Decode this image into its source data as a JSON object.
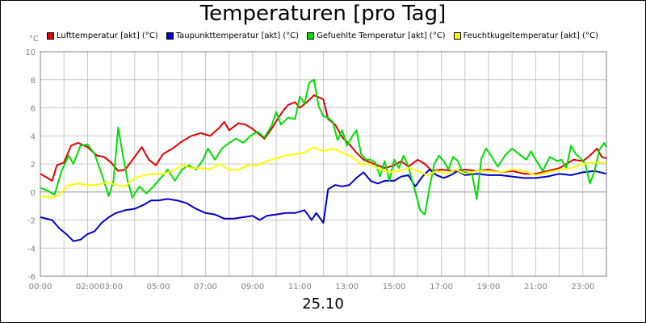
{
  "chart_data": {
    "type": "line",
    "title": "Temperaturen [pro Tag]",
    "y_unit": "°C",
    "x_title": "25.10",
    "ylim": [
      -6,
      10
    ],
    "y_ticks": [
      -6,
      -4,
      -2,
      0,
      2,
      4,
      6,
      8,
      10
    ],
    "xlim": [
      0,
      24
    ],
    "x_tick_labels": [
      {
        "h": 0,
        "label": "00:00"
      },
      {
        "h": 2,
        "label": "02:00"
      },
      {
        "h": 3,
        "label": "03:00"
      },
      {
        "h": 5,
        "label": "05:00"
      },
      {
        "h": 7,
        "label": "07:00"
      },
      {
        "h": 9,
        "label": "09:00"
      },
      {
        "h": 11,
        "label": "11:00"
      },
      {
        "h": 13,
        "label": "13:00"
      },
      {
        "h": 15,
        "label": "15:00"
      },
      {
        "h": 17,
        "label": "17:00"
      },
      {
        "h": 19,
        "label": "19:00"
      },
      {
        "h": 21,
        "label": "21:00"
      },
      {
        "h": 23,
        "label": "23:00"
      }
    ],
    "grid": true,
    "legend_position": "top",
    "series": [
      {
        "name": "Lufttemperatur [akt] (°C)",
        "color": "#e00000",
        "points": [
          [
            0,
            1.3
          ],
          [
            0.3,
            1.0
          ],
          [
            0.5,
            0.8
          ],
          [
            0.7,
            1.9
          ],
          [
            1.0,
            2.1
          ],
          [
            1.3,
            3.3
          ],
          [
            1.6,
            3.5
          ],
          [
            2.0,
            3.2
          ],
          [
            2.4,
            2.6
          ],
          [
            2.7,
            2.5
          ],
          [
            3.0,
            2.1
          ],
          [
            3.3,
            1.5
          ],
          [
            3.6,
            1.6
          ],
          [
            4.0,
            2.5
          ],
          [
            4.3,
            3.2
          ],
          [
            4.6,
            2.3
          ],
          [
            4.9,
            1.9
          ],
          [
            5.2,
            2.7
          ],
          [
            5.6,
            3.1
          ],
          [
            6.0,
            3.6
          ],
          [
            6.4,
            4.0
          ],
          [
            6.8,
            4.2
          ],
          [
            7.2,
            4.0
          ],
          [
            7.6,
            4.6
          ],
          [
            7.8,
            5.0
          ],
          [
            8.0,
            4.4
          ],
          [
            8.4,
            4.9
          ],
          [
            8.7,
            4.8
          ],
          [
            9.0,
            4.5
          ],
          [
            9.5,
            3.8
          ],
          [
            9.8,
            4.5
          ],
          [
            10.1,
            5.3
          ],
          [
            10.3,
            5.8
          ],
          [
            10.5,
            6.2
          ],
          [
            10.8,
            6.4
          ],
          [
            11.0,
            6.0
          ],
          [
            11.3,
            6.4
          ],
          [
            11.6,
            6.9
          ],
          [
            12.0,
            6.6
          ],
          [
            12.2,
            5.2
          ],
          [
            12.5,
            4.8
          ],
          [
            12.8,
            3.9
          ],
          [
            13.1,
            3.4
          ],
          [
            13.4,
            2.8
          ],
          [
            13.7,
            2.3
          ],
          [
            14.0,
            2.1
          ],
          [
            14.3,
            1.9
          ],
          [
            14.6,
            1.7
          ],
          [
            15.0,
            1.9
          ],
          [
            15.3,
            2.2
          ],
          [
            15.6,
            1.8
          ],
          [
            16.0,
            2.3
          ],
          [
            16.3,
            2.0
          ],
          [
            16.6,
            1.5
          ],
          [
            17.0,
            1.6
          ],
          [
            17.5,
            1.5
          ],
          [
            18.0,
            1.6
          ],
          [
            18.5,
            1.5
          ],
          [
            19.0,
            1.6
          ],
          [
            19.5,
            1.4
          ],
          [
            20.0,
            1.5
          ],
          [
            20.5,
            1.3
          ],
          [
            21.0,
            1.3
          ],
          [
            21.5,
            1.5
          ],
          [
            22.0,
            1.7
          ],
          [
            22.3,
            2.0
          ],
          [
            22.6,
            2.3
          ],
          [
            23.0,
            2.2
          ],
          [
            23.3,
            2.6
          ],
          [
            23.6,
            3.1
          ],
          [
            23.8,
            2.5
          ],
          [
            24.0,
            2.4
          ]
        ]
      },
      {
        "name": "Taupunkttemperatur [akt] (°C)",
        "color": "#0000cc",
        "points": [
          [
            0,
            -1.8
          ],
          [
            0.5,
            -2.0
          ],
          [
            0.8,
            -2.6
          ],
          [
            1.1,
            -3.0
          ],
          [
            1.4,
            -3.5
          ],
          [
            1.7,
            -3.4
          ],
          [
            2.0,
            -3.0
          ],
          [
            2.3,
            -2.8
          ],
          [
            2.6,
            -2.2
          ],
          [
            2.9,
            -1.8
          ],
          [
            3.2,
            -1.5
          ],
          [
            3.6,
            -1.3
          ],
          [
            4.0,
            -1.2
          ],
          [
            4.4,
            -0.9
          ],
          [
            4.7,
            -0.6
          ],
          [
            5.0,
            -0.6
          ],
          [
            5.4,
            -0.5
          ],
          [
            5.8,
            -0.6
          ],
          [
            6.2,
            -0.8
          ],
          [
            6.6,
            -1.2
          ],
          [
            7.0,
            -1.5
          ],
          [
            7.4,
            -1.6
          ],
          [
            7.8,
            -1.9
          ],
          [
            8.2,
            -1.9
          ],
          [
            8.6,
            -1.8
          ],
          [
            9.0,
            -1.7
          ],
          [
            9.3,
            -2.0
          ],
          [
            9.6,
            -1.7
          ],
          [
            10.0,
            -1.6
          ],
          [
            10.4,
            -1.5
          ],
          [
            10.8,
            -1.5
          ],
          [
            11.2,
            -1.3
          ],
          [
            11.5,
            -2.0
          ],
          [
            11.7,
            -1.5
          ],
          [
            12.0,
            -2.2
          ],
          [
            12.2,
            0.2
          ],
          [
            12.5,
            0.5
          ],
          [
            12.8,
            0.4
          ],
          [
            13.1,
            0.5
          ],
          [
            13.4,
            1.0
          ],
          [
            13.7,
            1.4
          ],
          [
            14.0,
            0.8
          ],
          [
            14.3,
            0.6
          ],
          [
            14.6,
            0.8
          ],
          [
            15.0,
            0.8
          ],
          [
            15.3,
            1.1
          ],
          [
            15.6,
            1.2
          ],
          [
            15.9,
            0.4
          ],
          [
            16.2,
            1.1
          ],
          [
            16.5,
            1.6
          ],
          [
            16.8,
            1.2
          ],
          [
            17.1,
            1.0
          ],
          [
            17.4,
            1.2
          ],
          [
            17.7,
            1.5
          ],
          [
            18.0,
            1.2
          ],
          [
            18.5,
            1.3
          ],
          [
            19.0,
            1.2
          ],
          [
            19.5,
            1.2
          ],
          [
            20.0,
            1.1
          ],
          [
            20.5,
            1.0
          ],
          [
            21.0,
            1.0
          ],
          [
            21.5,
            1.1
          ],
          [
            22.0,
            1.3
          ],
          [
            22.5,
            1.2
          ],
          [
            23.0,
            1.4
          ],
          [
            23.5,
            1.5
          ],
          [
            24.0,
            1.3
          ]
        ]
      },
      {
        "name": "Gefuehlte Temperatur [akt] (°C)",
        "color": "#00dd00",
        "points": [
          [
            0,
            0.3
          ],
          [
            0.3,
            0.1
          ],
          [
            0.6,
            -0.2
          ],
          [
            0.9,
            1.5
          ],
          [
            1.2,
            2.6
          ],
          [
            1.4,
            2.0
          ],
          [
            1.7,
            3.3
          ],
          [
            2.0,
            3.4
          ],
          [
            2.3,
            2.7
          ],
          [
            2.6,
            1.3
          ],
          [
            2.9,
            -0.3
          ],
          [
            3.1,
            0.8
          ],
          [
            3.3,
            4.6
          ],
          [
            3.5,
            2.6
          ],
          [
            3.7,
            0.8
          ],
          [
            3.9,
            -0.4
          ],
          [
            4.2,
            0.4
          ],
          [
            4.5,
            -0.1
          ],
          [
            4.8,
            0.4
          ],
          [
            5.1,
            1.0
          ],
          [
            5.4,
            1.6
          ],
          [
            5.7,
            0.8
          ],
          [
            6.0,
            1.6
          ],
          [
            6.3,
            1.9
          ],
          [
            6.6,
            1.6
          ],
          [
            6.9,
            2.3
          ],
          [
            7.1,
            3.1
          ],
          [
            7.4,
            2.3
          ],
          [
            7.7,
            3.1
          ],
          [
            8.0,
            3.5
          ],
          [
            8.3,
            3.8
          ],
          [
            8.6,
            3.5
          ],
          [
            8.9,
            4.0
          ],
          [
            9.2,
            4.3
          ],
          [
            9.5,
            3.9
          ],
          [
            9.8,
            4.7
          ],
          [
            10.0,
            5.7
          ],
          [
            10.2,
            4.8
          ],
          [
            10.5,
            5.3
          ],
          [
            10.8,
            5.2
          ],
          [
            11.0,
            6.8
          ],
          [
            11.2,
            6.3
          ],
          [
            11.4,
            7.8
          ],
          [
            11.6,
            8.0
          ],
          [
            11.8,
            6.1
          ],
          [
            12.0,
            5.4
          ],
          [
            12.2,
            5.3
          ],
          [
            12.4,
            5.0
          ],
          [
            12.6,
            3.7
          ],
          [
            12.8,
            4.4
          ],
          [
            13.0,
            3.3
          ],
          [
            13.2,
            3.9
          ],
          [
            13.4,
            4.4
          ],
          [
            13.6,
            2.7
          ],
          [
            13.8,
            2.3
          ],
          [
            14.0,
            2.3
          ],
          [
            14.2,
            2.1
          ],
          [
            14.4,
            1.1
          ],
          [
            14.6,
            2.2
          ],
          [
            14.8,
            0.8
          ],
          [
            15.0,
            2.3
          ],
          [
            15.2,
            1.7
          ],
          [
            15.4,
            2.6
          ],
          [
            15.6,
            1.8
          ],
          [
            15.9,
            0.0
          ],
          [
            16.1,
            -1.3
          ],
          [
            16.3,
            -1.6
          ],
          [
            16.5,
            0.3
          ],
          [
            16.7,
            2.0
          ],
          [
            16.9,
            2.6
          ],
          [
            17.1,
            2.2
          ],
          [
            17.3,
            1.6
          ],
          [
            17.5,
            2.5
          ],
          [
            17.7,
            2.2
          ],
          [
            17.9,
            1.4
          ],
          [
            18.1,
            1.4
          ],
          [
            18.3,
            1.3
          ],
          [
            18.5,
            -0.5
          ],
          [
            18.7,
            2.4
          ],
          [
            18.9,
            3.1
          ],
          [
            19.1,
            2.6
          ],
          [
            19.4,
            1.8
          ],
          [
            19.7,
            2.6
          ],
          [
            20.0,
            3.1
          ],
          [
            20.3,
            2.7
          ],
          [
            20.6,
            2.3
          ],
          [
            20.8,
            2.9
          ],
          [
            21.0,
            2.3
          ],
          [
            21.3,
            1.5
          ],
          [
            21.6,
            2.5
          ],
          [
            21.9,
            2.2
          ],
          [
            22.1,
            2.3
          ],
          [
            22.3,
            1.7
          ],
          [
            22.5,
            3.3
          ],
          [
            22.7,
            2.7
          ],
          [
            22.9,
            2.4
          ],
          [
            23.1,
            2.0
          ],
          [
            23.3,
            0.6
          ],
          [
            23.5,
            1.5
          ],
          [
            23.7,
            3.0
          ],
          [
            23.9,
            3.5
          ],
          [
            24.0,
            3.2
          ]
        ]
      },
      {
        "name": "Feuchtkugeltemperatur [akt] (°C)",
        "color": "#ffff00",
        "points": [
          [
            0,
            -0.3
          ],
          [
            0.5,
            -0.4
          ],
          [
            0.8,
            -0.2
          ],
          [
            1.2,
            0.5
          ],
          [
            1.6,
            0.6
          ],
          [
            2.0,
            0.5
          ],
          [
            2.4,
            0.5
          ],
          [
            2.8,
            0.7
          ],
          [
            3.2,
            0.5
          ],
          [
            3.6,
            0.4
          ],
          [
            4.0,
            1.0
          ],
          [
            4.4,
            1.2
          ],
          [
            4.8,
            1.3
          ],
          [
            5.2,
            1.3
          ],
          [
            5.6,
            1.5
          ],
          [
            6.0,
            1.9
          ],
          [
            6.4,
            1.7
          ],
          [
            6.8,
            1.7
          ],
          [
            7.2,
            1.6
          ],
          [
            7.6,
            2.0
          ],
          [
            8.0,
            1.6
          ],
          [
            8.4,
            1.6
          ],
          [
            8.8,
            1.9
          ],
          [
            9.2,
            1.9
          ],
          [
            9.6,
            2.2
          ],
          [
            10.0,
            2.4
          ],
          [
            10.4,
            2.6
          ],
          [
            10.8,
            2.7
          ],
          [
            11.2,
            2.8
          ],
          [
            11.6,
            3.2
          ],
          [
            12.0,
            2.9
          ],
          [
            12.4,
            3.1
          ],
          [
            12.8,
            2.8
          ],
          [
            13.2,
            2.5
          ],
          [
            13.6,
            2.0
          ],
          [
            14.0,
            2.0
          ],
          [
            14.4,
            1.6
          ],
          [
            14.8,
            1.4
          ],
          [
            15.2,
            1.5
          ],
          [
            15.6,
            1.7
          ],
          [
            16.0,
            1.5
          ],
          [
            16.4,
            1.2
          ],
          [
            16.8,
            1.5
          ],
          [
            17.2,
            1.3
          ],
          [
            17.6,
            1.6
          ],
          [
            18.0,
            1.3
          ],
          [
            18.5,
            1.5
          ],
          [
            19.0,
            1.5
          ],
          [
            19.5,
            1.4
          ],
          [
            20.0,
            1.6
          ],
          [
            20.5,
            1.5
          ],
          [
            21.0,
            1.2
          ],
          [
            21.5,
            1.4
          ],
          [
            22.0,
            1.6
          ],
          [
            22.5,
            1.7
          ],
          [
            23.0,
            2.0
          ],
          [
            23.5,
            2.1
          ],
          [
            24.0,
            2.1
          ]
        ]
      }
    ]
  }
}
